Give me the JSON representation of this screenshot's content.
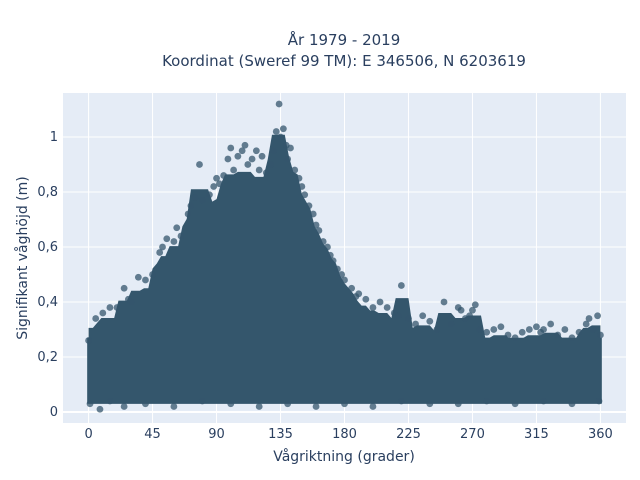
{
  "chart_data": {
    "type": "scatter",
    "title_line1": "År 1979 - 2019",
    "title_line2": "Koordinat (Sweref 99 TM): E 346506, N 6203619",
    "xlabel": "Vågriktning (grader)",
    "ylabel": "Signifikant våghöjd (m)",
    "xlim": [
      -18,
      378
    ],
    "ylim": [
      -0.04,
      1.16
    ],
    "xticks": [
      0,
      45,
      90,
      135,
      180,
      225,
      270,
      315,
      360
    ],
    "xtick_labels": [
      "0",
      "45",
      "90",
      "135",
      "180",
      "225",
      "270",
      "315",
      "360"
    ],
    "yticks": [
      0,
      0.2,
      0.4,
      0.6,
      0.8,
      1
    ],
    "ytick_labels": [
      "0",
      "0,2",
      "0,4",
      "0,6",
      "0,8",
      "1"
    ],
    "grid": true,
    "background_color": "#e5ecf6",
    "marker_color": "#34566c",
    "marker_opacity": 0.75,
    "points": [
      [
        0,
        0.26
      ],
      [
        5,
        0.34
      ],
      [
        10,
        0.36
      ],
      [
        15,
        0.38
      ],
      [
        20,
        0.38
      ],
      [
        25,
        0.45
      ],
      [
        28,
        0.41
      ],
      [
        30,
        0.4
      ],
      [
        35,
        0.49
      ],
      [
        40,
        0.48
      ],
      [
        45,
        0.5
      ],
      [
        50,
        0.58
      ],
      [
        52,
        0.6
      ],
      [
        55,
        0.63
      ],
      [
        60,
        0.62
      ],
      [
        62,
        0.67
      ],
      [
        65,
        0.64
      ],
      [
        70,
        0.72
      ],
      [
        72,
        0.75
      ],
      [
        75,
        0.78
      ],
      [
        78,
        0.9
      ],
      [
        80,
        0.77
      ],
      [
        85,
        0.79
      ],
      [
        88,
        0.82
      ],
      [
        90,
        0.85
      ],
      [
        92,
        0.83
      ],
      [
        95,
        0.86
      ],
      [
        98,
        0.92
      ],
      [
        100,
        0.96
      ],
      [
        102,
        0.88
      ],
      [
        105,
        0.93
      ],
      [
        108,
        0.95
      ],
      [
        110,
        0.97
      ],
      [
        112,
        0.9
      ],
      [
        115,
        0.92
      ],
      [
        118,
        0.95
      ],
      [
        120,
        0.88
      ],
      [
        122,
        0.93
      ],
      [
        125,
        0.87
      ],
      [
        128,
        0.9
      ],
      [
        130,
        0.95
      ],
      [
        132,
        1.02
      ],
      [
        134,
        1.12
      ],
      [
        135,
        1.0
      ],
      [
        137,
        1.03
      ],
      [
        139,
        0.97
      ],
      [
        140,
        0.92
      ],
      [
        142,
        0.96
      ],
      [
        145,
        0.88
      ],
      [
        148,
        0.85
      ],
      [
        150,
        0.82
      ],
      [
        152,
        0.79
      ],
      [
        155,
        0.75
      ],
      [
        158,
        0.72
      ],
      [
        160,
        0.68
      ],
      [
        162,
        0.66
      ],
      [
        165,
        0.62
      ],
      [
        168,
        0.6
      ],
      [
        170,
        0.57
      ],
      [
        172,
        0.55
      ],
      [
        175,
        0.52
      ],
      [
        178,
        0.5
      ],
      [
        180,
        0.48
      ],
      [
        185,
        0.45
      ],
      [
        188,
        0.42
      ],
      [
        190,
        0.43
      ],
      [
        195,
        0.41
      ],
      [
        200,
        0.38
      ],
      [
        205,
        0.4
      ],
      [
        210,
        0.38
      ],
      [
        215,
        0.36
      ],
      [
        218,
        0.35
      ],
      [
        220,
        0.46
      ],
      [
        225,
        0.34
      ],
      [
        230,
        0.32
      ],
      [
        235,
        0.35
      ],
      [
        240,
        0.33
      ],
      [
        245,
        0.3
      ],
      [
        250,
        0.4
      ],
      [
        255,
        0.32
      ],
      [
        260,
        0.38
      ],
      [
        262,
        0.37
      ],
      [
        265,
        0.34
      ],
      [
        268,
        0.35
      ],
      [
        270,
        0.37
      ],
      [
        272,
        0.39
      ],
      [
        275,
        0.3
      ],
      [
        280,
        0.29
      ],
      [
        285,
        0.3
      ],
      [
        290,
        0.31
      ],
      [
        295,
        0.28
      ],
      [
        300,
        0.27
      ],
      [
        305,
        0.29
      ],
      [
        310,
        0.3
      ],
      [
        315,
        0.31
      ],
      [
        318,
        0.29
      ],
      [
        320,
        0.3
      ],
      [
        325,
        0.32
      ],
      [
        330,
        0.28
      ],
      [
        335,
        0.3
      ],
      [
        340,
        0.27
      ],
      [
        345,
        0.29
      ],
      [
        350,
        0.32
      ],
      [
        352,
        0.34
      ],
      [
        355,
        0.3
      ],
      [
        358,
        0.35
      ],
      [
        360,
        0.28
      ],
      [
        1,
        0.03
      ],
      [
        8,
        0.01
      ],
      [
        15,
        0.04
      ],
      [
        25,
        0.02
      ],
      [
        40,
        0.03
      ],
      [
        60,
        0.02
      ],
      [
        80,
        0.04
      ],
      [
        100,
        0.03
      ],
      [
        120,
        0.02
      ],
      [
        140,
        0.03
      ],
      [
        160,
        0.02
      ],
      [
        180,
        0.03
      ],
      [
        200,
        0.02
      ],
      [
        220,
        0.04
      ],
      [
        240,
        0.03
      ],
      [
        260,
        0.03
      ],
      [
        280,
        0.04
      ],
      [
        300,
        0.03
      ],
      [
        320,
        0.04
      ],
      [
        340,
        0.03
      ],
      [
        359,
        0.04
      ]
    ]
  }
}
